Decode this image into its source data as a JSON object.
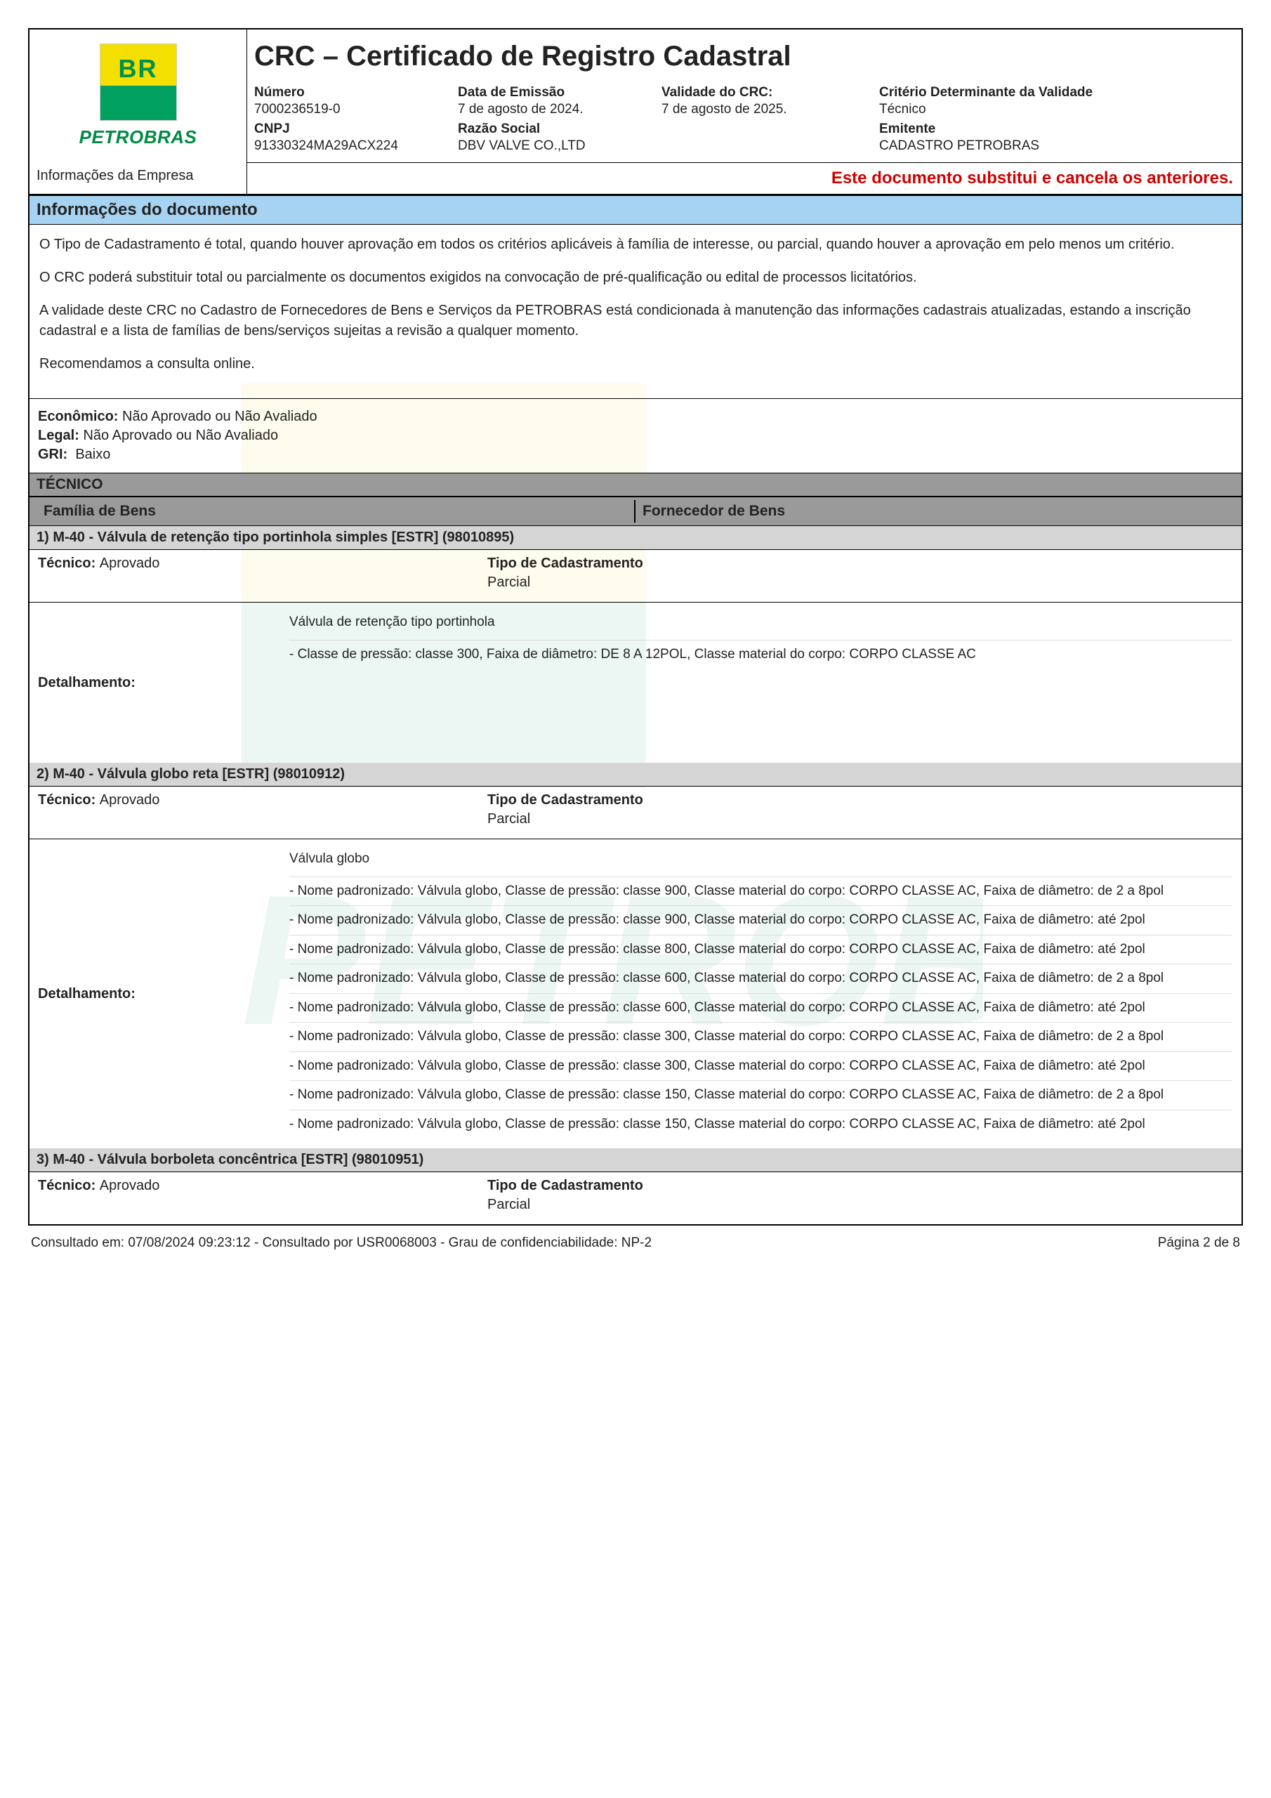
{
  "logo": {
    "text_top": "BR",
    "text_name": "PETROBRAS",
    "yellow": "#f3df00",
    "green": "#00a060",
    "name_color": "#008a43"
  },
  "header": {
    "title": "CRC – Certificado de Registro Cadastral",
    "info_empresa": "Informações da Empresa",
    "numero_lbl": "Número",
    "numero": "7000236519-0",
    "cnpj_lbl": "CNPJ",
    "cnpj": "91330324MA29ACX224",
    "data_lbl": "Data de Emissão",
    "data": "7 de agosto de 2024.",
    "razao_lbl": "Razão Social",
    "razao": "DBV VALVE CO.,LTD",
    "validade_lbl": "Validade do CRC:",
    "validade": "7 de agosto de 2025.",
    "criterio_lbl": "Critério Determinante da Validade",
    "criterio": "Técnico",
    "emitente_lbl": "Emitente",
    "emitente": "CADASTRO PETROBRAS"
  },
  "notice": "Este documento substitui e cancela os anteriores.",
  "section_info_title": "Informações do documento",
  "paragraphs": [
    "O Tipo de Cadastramento é total, quando houver aprovação em todos os critérios aplicáveis à família de interesse, ou parcial, quando houver a aprovação em pelo menos um critério.",
    "O CRC poderá substituir total ou parcialmente os documentos exigidos  na convocação de pré-qualificação ou edital de processos licitatórios.",
    "A validade deste CRC no Cadastro de Fornecedores de Bens e Serviços da PETROBRAS está condicionada à manutenção das informações cadastrais atualizadas, estando a inscrição cadastral e a lista de famílias de bens/serviços sujeitas a revisão a qualquer momento.",
    "Recomendamos a consulta online."
  ],
  "status": {
    "economico_lbl": "Econômico:",
    "economico": "Não Aprovado ou Não Avaliado",
    "legal_lbl": "Legal:",
    "legal": "Não Aprovado ou Não Avaliado",
    "gri_lbl": "GRI:",
    "gri": "Baixo"
  },
  "tecnico_bar": "TÉCNICO",
  "familia_bens": "Família de Bens",
  "fornecedor_bens": "Fornecedor de Bens",
  "tecnico_lbl": "Técnico:",
  "tipo_lbl": "Tipo de Cadastramento",
  "detalhamento_lbl": "Detalhamento:",
  "items": [
    {
      "title": "1) M-40 - Válvula de retenção tipo portinhola simples [ESTR] (98010895)",
      "tecnico": "Aprovado",
      "tipo": "Parcial",
      "intro": "Válvula de retenção tipo portinhola",
      "lines": [
        "-  Classe de pressão:  classe 300,  Faixa de diâmetro:  DE 8 A 12POL,  Classe material do corpo:  CORPO CLASSE AC"
      ]
    },
    {
      "title": "2) M-40 - Válvula globo reta [ESTR] (98010912)",
      "tecnico": "Aprovado",
      "tipo": "Parcial",
      "intro": "Válvula globo",
      "lines": [
        " -  Nome padronizado:  Válvula globo,  Classe de pressão:  classe 900,  Classe material do corpo:  CORPO CLASSE AC,  Faixa de diâmetro:  de 2 a 8pol",
        "-  Nome padronizado:  Válvula globo,  Classe de pressão:  classe 900,  Classe material do corpo:  CORPO CLASSE AC,  Faixa de diâmetro:  até 2pol",
        "-  Nome padronizado:  Válvula globo,  Classe de pressão:  classe 800,  Classe material do corpo:  CORPO CLASSE AC,  Faixa de diâmetro:  até 2pol",
        "-  Nome padronizado:  Válvula globo,  Classe de pressão:  classe 600,  Classe material do corpo:  CORPO CLASSE AC,  Faixa de diâmetro:  de 2 a 8pol",
        "-  Nome padronizado:  Válvula globo,  Classe de pressão:  classe 600,  Classe material do corpo:  CORPO CLASSE AC,  Faixa de diâmetro:  até 2pol",
        "-  Nome padronizado:  Válvula globo,  Classe de pressão:  classe 300,  Classe material do corpo:  CORPO CLASSE AC,  Faixa de diâmetro:  de 2 a 8pol",
        "-  Nome padronizado:  Válvula globo,  Classe de pressão:  classe 300,  Classe material do corpo:  CORPO CLASSE AC,  Faixa de diâmetro:  até 2pol",
        "-  Nome padronizado:  Válvula globo,  Classe de pressão:  classe 150,  Classe material do corpo:  CORPO CLASSE AC,  Faixa de diâmetro:  de 2 a 8pol",
        "-  Nome padronizado:  Válvula globo,  Classe de pressão:  classe 150,  Classe material do corpo:  CORPO CLASSE AC,  Faixa de diâmetro:  até 2pol"
      ]
    },
    {
      "title": "3) M-40 - Válvula borboleta concêntrica [ESTR] (98010951)",
      "tecnico": "Aprovado",
      "tipo": "Parcial",
      "intro": "",
      "lines": []
    }
  ],
  "footer": {
    "left": "Consultado em:  07/08/2024 09:23:12 - Consultado por USR0068003 - Grau de confidenciabilidade: NP-2",
    "right": "Página 2 de 8"
  },
  "colors": {
    "section_blue": "#a7d3f2",
    "gray_dark": "#9a9a9a",
    "gray_light": "#d5d5d5",
    "notice_red": "#d10000"
  }
}
